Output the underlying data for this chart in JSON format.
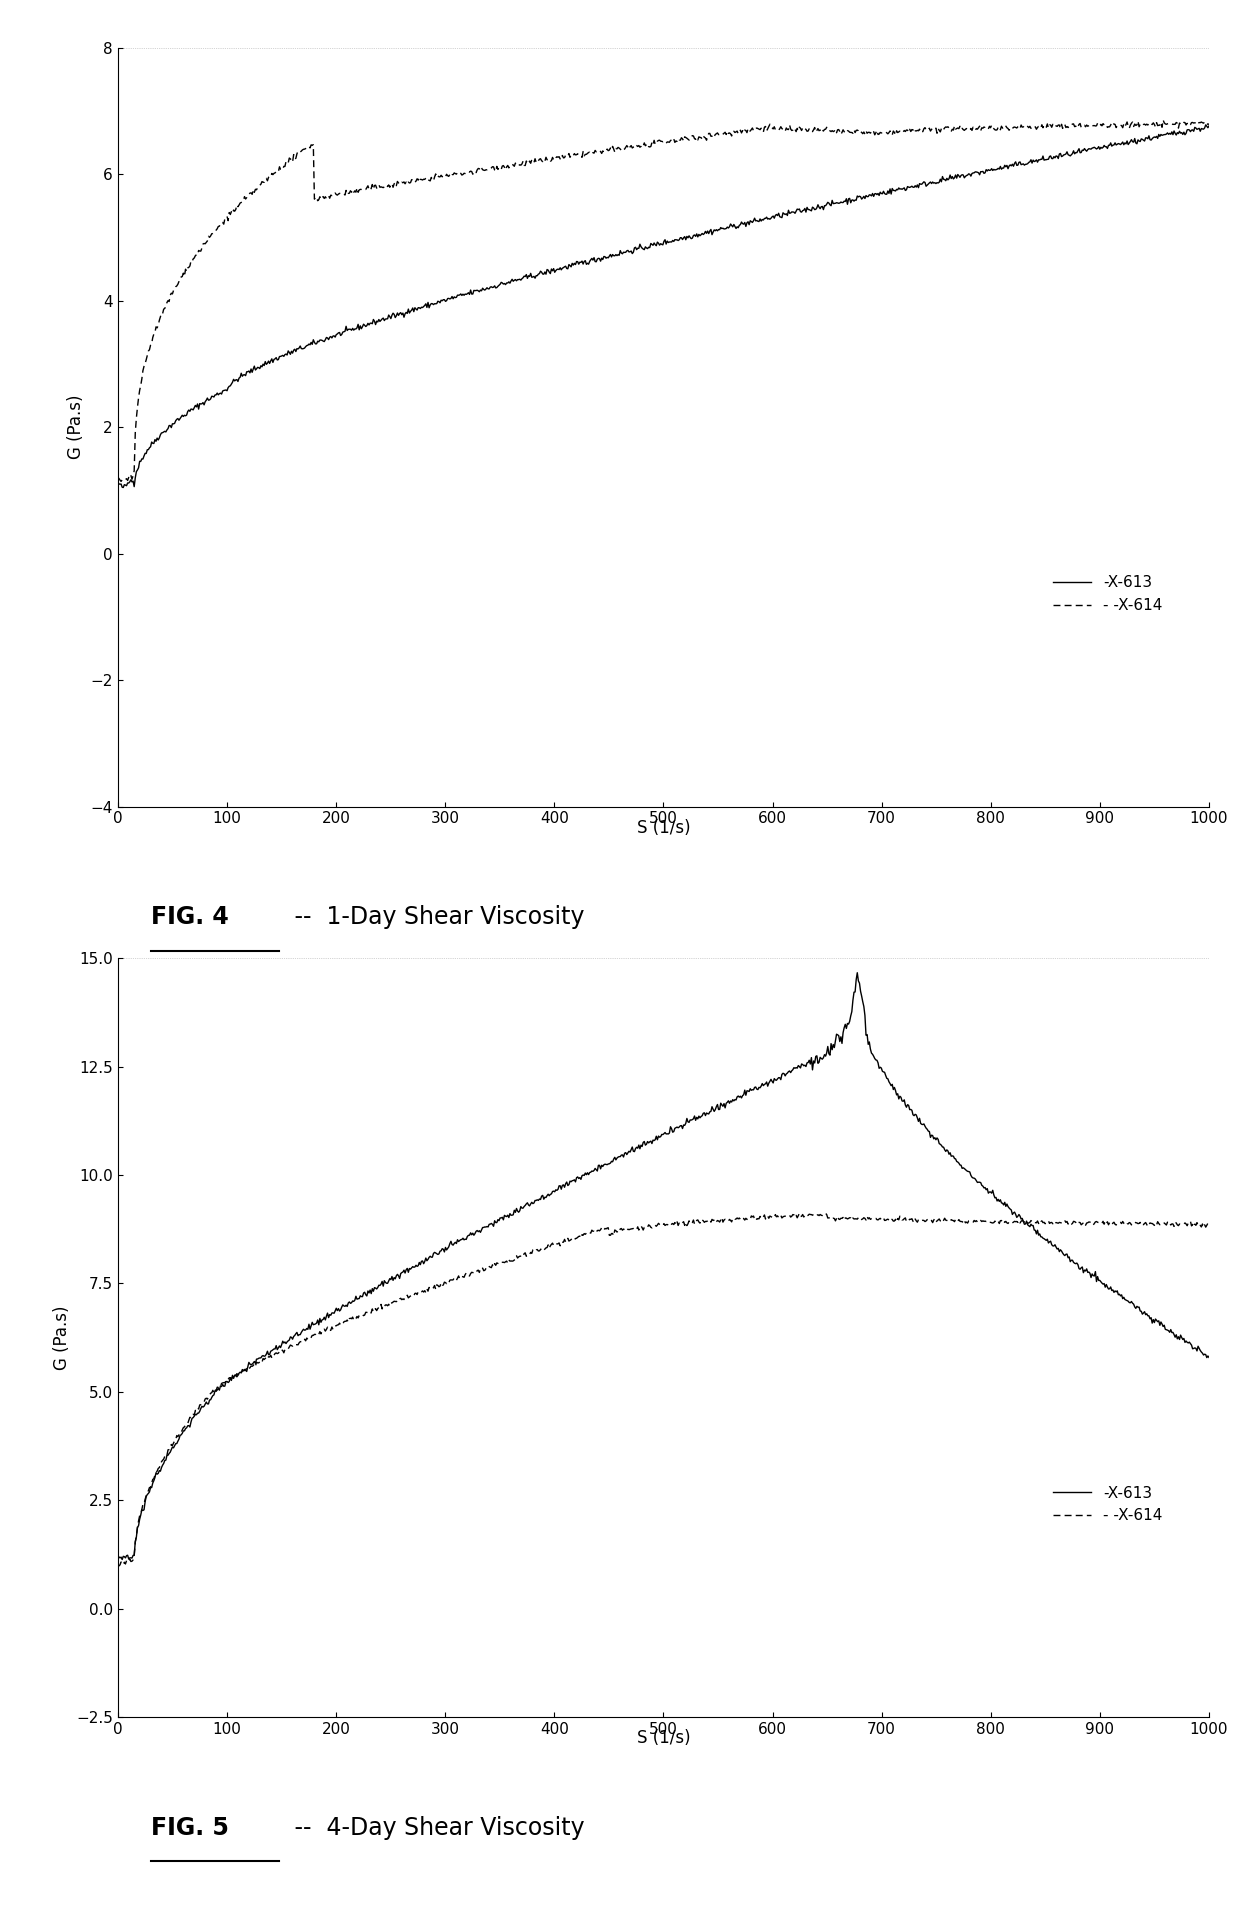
{
  "fig4": {
    "xlabel": "S (1/s)",
    "ylabel": "G (Pa.s)",
    "xlim": [
      0,
      1000
    ],
    "ylim": [
      -4,
      8
    ],
    "yticks": [
      -4,
      -2,
      0,
      2,
      4,
      6,
      8
    ],
    "xticks": [
      0,
      100,
      200,
      300,
      400,
      500,
      600,
      700,
      800,
      900,
      1000
    ],
    "fig_label": "FIG. 4",
    "fig_desc": " --  1-Day Shear Viscosity",
    "legend_x613": "-X-613",
    "legend_x614": "- -X-614"
  },
  "fig5": {
    "xlabel": "S (1/s)",
    "ylabel": "G (Pa.s)",
    "xlim": [
      0,
      1000
    ],
    "ylim": [
      -2.5,
      15.0
    ],
    "yticks": [
      -2.5,
      0.0,
      2.5,
      5.0,
      7.5,
      10.0,
      12.5,
      15.0
    ],
    "xticks": [
      0,
      100,
      200,
      300,
      400,
      500,
      600,
      700,
      800,
      900,
      1000
    ],
    "fig_label": "FIG. 5",
    "fig_desc": " --  4-Day Shear Viscosity",
    "legend_x613": "-X-613",
    "legend_x614": "- -X-614"
  },
  "line_color": "#000000",
  "background": "#ffffff"
}
